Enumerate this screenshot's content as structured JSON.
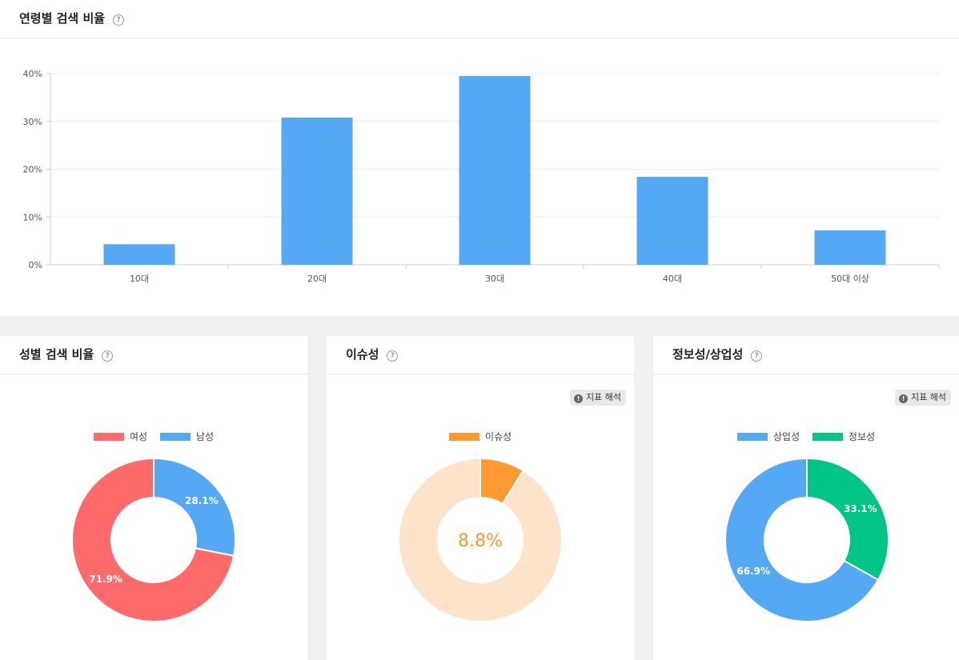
{
  "age_card": {
    "title": "연령별 검색 비율"
  },
  "gender_card": {
    "title": "성별 검색 비율"
  },
  "issue_card": {
    "title": "이슈성",
    "guide_label": "지표 해석"
  },
  "info_card": {
    "title": "정보성/상업성",
    "guide_label": "지표 해석"
  },
  "colors": {
    "bar": "#54a8f4",
    "female": "#ff6b6b",
    "male": "#54a8f4",
    "issue": "#ff9a33",
    "issue_rest": "#fde3c9",
    "commercial": "#54a8f4",
    "informational": "#00c587"
  },
  "chart_data": [
    {
      "type": "bar",
      "categories": [
        "10대",
        "20대",
        "30대",
        "40대",
        "50대 이상"
      ],
      "values": [
        4.3,
        30.8,
        39.5,
        18.4,
        7.2
      ],
      "ylim": [
        0,
        40
      ],
      "yticks": [
        0,
        10,
        20,
        30,
        40
      ],
      "ytick_labels": [
        "0%",
        "10%",
        "20%",
        "30%",
        "40%"
      ],
      "grid": true
    },
    {
      "type": "pie",
      "donut": true,
      "legend": [
        "여성",
        "남성"
      ],
      "slices": [
        {
          "name": "남성",
          "value": 28.1,
          "label": "28.1%",
          "color": "#54a8f4"
        },
        {
          "name": "여성",
          "value": 71.9,
          "label": "71.9%",
          "color": "#ff6b6b"
        }
      ]
    },
    {
      "type": "pie",
      "donut": true,
      "legend": [
        "이슈성"
      ],
      "slices": [
        {
          "name": "이슈성",
          "value": 8.8,
          "color": "#ff9a33"
        },
        {
          "name": "",
          "value": 91.2,
          "color": "#fde3c9"
        }
      ],
      "center_label": "8.8%"
    },
    {
      "type": "pie",
      "donut": true,
      "legend": [
        "상업성",
        "정보성"
      ],
      "slices": [
        {
          "name": "정보성",
          "value": 33.1,
          "label": "33.1%",
          "color": "#00c587"
        },
        {
          "name": "상업성",
          "value": 66.9,
          "label": "66.9%",
          "color": "#54a8f4"
        }
      ]
    }
  ]
}
